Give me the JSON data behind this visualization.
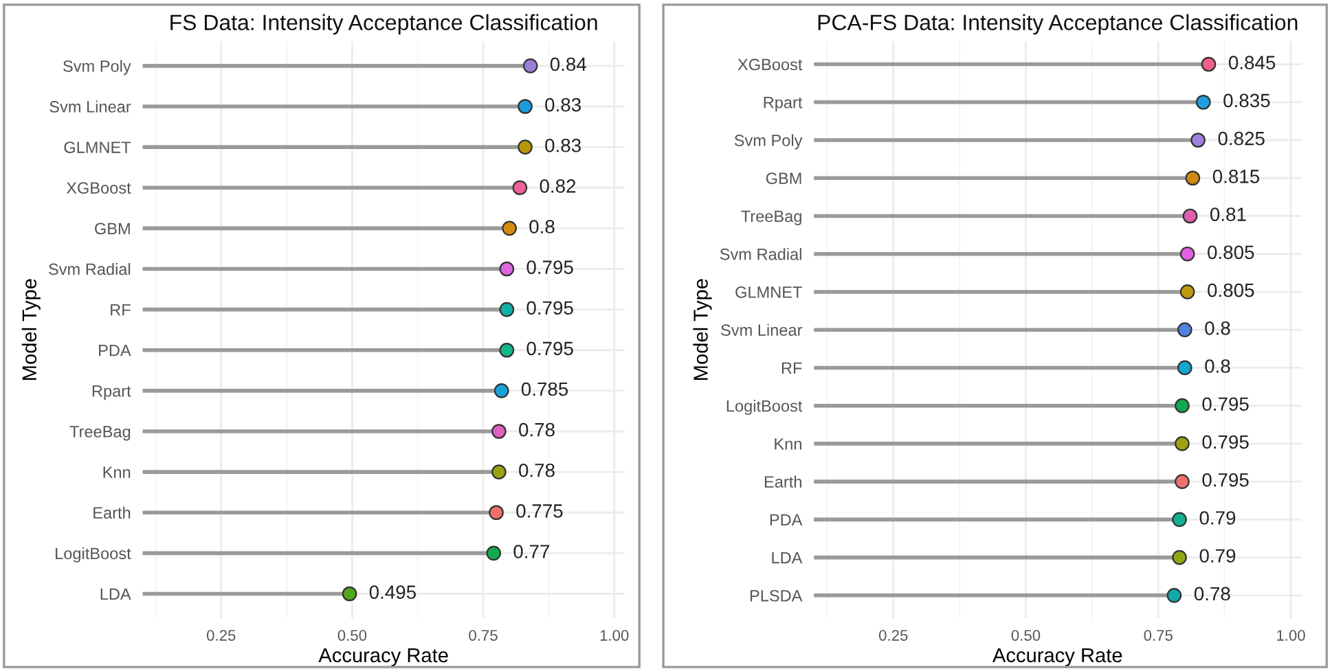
{
  "chart_data": [
    {
      "type": "lollipop",
      "orientation": "horizontal",
      "title": "FS Data: Intensity Acceptance Classification",
      "xlabel": "Accuracy Rate",
      "ylabel": "Model Type",
      "categories": [
        "Svm Poly",
        "Svm Linear",
        "GLMNET",
        "XGBoost",
        "GBM",
        "Svm Radial",
        "RF",
        "PDA",
        "Rpart",
        "TreeBag",
        "Knn",
        "Earth",
        "LogitBoost",
        "LDA"
      ],
      "values": [
        0.84,
        0.83,
        0.83,
        0.82,
        0.8,
        0.795,
        0.795,
        0.795,
        0.785,
        0.78,
        0.78,
        0.775,
        0.77,
        0.495
      ],
      "colors": [
        "#9a7fd8",
        "#1a9be0",
        "#b8960a",
        "#f0609a",
        "#d98a10",
        "#e065e0",
        "#10b0a8",
        "#10b88a",
        "#18a0d8",
        "#e060c0",
        "#9aa010",
        "#f07068",
        "#10a850",
        "#50a820"
      ],
      "xlim": [
        0.1,
        1.02
      ],
      "xticks": [
        {
          "value": 0.25,
          "label": "0.25"
        },
        {
          "value": 0.5,
          "label": "0.50"
        },
        {
          "value": 0.75,
          "label": "0.75"
        },
        {
          "value": 1.0,
          "label": "1.00"
        }
      ],
      "grid": true,
      "data_labels": true,
      "marker": "circle"
    },
    {
      "type": "lollipop",
      "orientation": "horizontal",
      "title": "PCA-FS Data: Intensity Acceptance Classification",
      "xlabel": "Accuracy Rate",
      "ylabel": "Model Type",
      "categories": [
        "XGBoost",
        "Rpart",
        "Svm Poly",
        "GBM",
        "TreeBag",
        "Svm Radial",
        "GLMNET",
        "Svm Linear",
        "RF",
        "LogitBoost",
        "Knn",
        "Earth",
        "PDA",
        "LDA",
        "PLSDA"
      ],
      "values": [
        0.845,
        0.835,
        0.825,
        0.815,
        0.81,
        0.805,
        0.805,
        0.8,
        0.8,
        0.795,
        0.795,
        0.795,
        0.79,
        0.79,
        0.78
      ],
      "colors": [
        "#f06088",
        "#20a0e0",
        "#a080e0",
        "#d08a10",
        "#e060b0",
        "#e060e0",
        "#c09a10",
        "#5080e0",
        "#10a8d0",
        "#10a850",
        "#a0a010",
        "#f07070",
        "#10b090",
        "#90a810",
        "#10a8a8"
      ],
      "xlim": [
        0.1,
        1.02
      ],
      "xticks": [
        {
          "value": 0.25,
          "label": "0.25"
        },
        {
          "value": 0.5,
          "label": "0.50"
        },
        {
          "value": 0.75,
          "label": "0.75"
        },
        {
          "value": 1.0,
          "label": "1.00"
        }
      ],
      "grid": true,
      "data_labels": true,
      "marker": "circle"
    }
  ]
}
